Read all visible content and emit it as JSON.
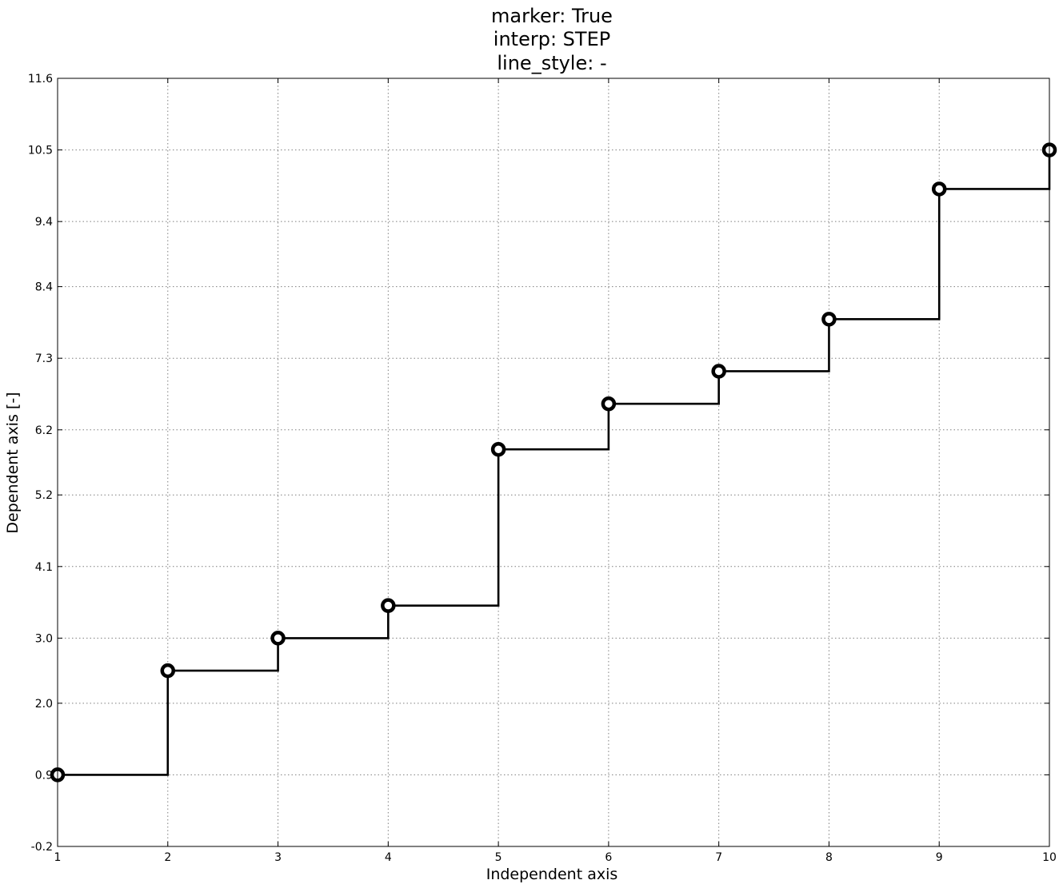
{
  "chart_data": {
    "type": "line",
    "title_lines": [
      "marker: True",
      "interp: STEP",
      "line_style: -"
    ],
    "xlabel": "Independent axis",
    "ylabel": "Dependent axis [-]",
    "x": [
      1,
      2,
      3,
      4,
      5,
      6,
      7,
      8,
      9,
      10
    ],
    "series": [
      {
        "values": [
          0.9,
          2.5,
          3.0,
          3.5,
          5.9,
          6.6,
          7.1,
          7.9,
          9.9,
          10.5
        ]
      }
    ],
    "xlim": [
      1,
      10
    ],
    "ylim": [
      -0.2,
      11.6
    ],
    "xticks": [
      "1",
      "2",
      "3",
      "4",
      "5",
      "6",
      "7",
      "8",
      "9",
      "10"
    ],
    "yticks": [
      "-0.2",
      "0.9",
      "2.0",
      "3.0",
      "4.1",
      "5.2",
      "6.2",
      "7.3",
      "8.4",
      "9.4",
      "10.5",
      "11.6"
    ],
    "interpolation": "step",
    "marker": "circle",
    "line_style": "solid",
    "grid": true,
    "colors": {
      "line": "#000000",
      "marker_face": "#ffffff",
      "grid": "#7f7f7f"
    }
  }
}
